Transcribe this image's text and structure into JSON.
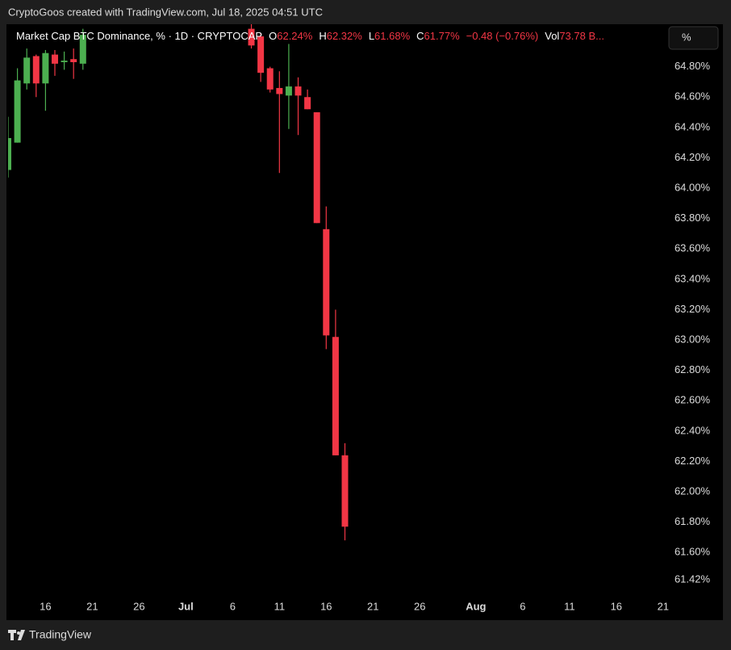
{
  "header": "CryptoGoos created with TradingView.com, Jul 18, 2025 04:51 UTC",
  "footer": "TradingView",
  "chart_data": {
    "type": "candlestick",
    "title": "Market Cap BTC Dominance, % · 1D · CRYPTOCAP",
    "legend": [
      {
        "key": "O",
        "text": "62.24%"
      },
      {
        "key": "H",
        "text": "62.32%"
      },
      {
        "key": "L",
        "text": "61.68%"
      },
      {
        "key": "C",
        "text": "61.77%"
      },
      {
        "text": "−0.48 (−0.76%)"
      },
      {
        "key": "Vol",
        "text": "73.78 B..."
      }
    ],
    "scale_button": "%",
    "up_color": "#4caf50",
    "down_color": "#f23645",
    "x": [
      "2025-06-12",
      "2025-06-13",
      "2025-06-14",
      "2025-06-15",
      "2025-06-16",
      "2025-06-17",
      "2025-06-18",
      "2025-06-19",
      "2025-06-20",
      "2025-07-08",
      "2025-07-09",
      "2025-07-10",
      "2025-07-11",
      "2025-07-12",
      "2025-07-13",
      "2025-07-14",
      "2025-07-15",
      "2025-07-16",
      "2025-07-17",
      "2025-07-18"
    ],
    "open": [
      64.12,
      64.3,
      64.69,
      64.87,
      64.69,
      64.88,
      64.83,
      64.85,
      64.82,
      65.05,
      65.0,
      64.79,
      64.66,
      64.61,
      64.67,
      64.6,
      64.5,
      63.73,
      63.02,
      62.24
    ],
    "high": [
      64.47,
      64.79,
      64.92,
      64.88,
      64.91,
      64.91,
      64.9,
      64.92,
      65.05,
      65.1,
      65.02,
      64.8,
      64.77,
      64.95,
      64.73,
      64.65,
      64.5,
      63.88,
      63.2,
      62.32
    ],
    "low": [
      64.07,
      64.3,
      64.65,
      64.6,
      64.51,
      64.74,
      64.78,
      64.72,
      64.78,
      64.92,
      64.7,
      64.63,
      64.1,
      64.39,
      64.35,
      64.52,
      63.77,
      62.94,
      62.24,
      61.68
    ],
    "close": [
      64.33,
      64.71,
      64.86,
      64.69,
      64.89,
      64.82,
      64.84,
      64.83,
      65.01,
      64.94,
      64.76,
      64.65,
      64.62,
      64.67,
      64.61,
      64.52,
      63.77,
      63.03,
      62.24,
      61.77
    ],
    "xlim": [
      "2025-06-12",
      "2025-08-23"
    ],
    "xticks": [
      {
        "value": "2025-06-16",
        "label": "16"
      },
      {
        "value": "2025-06-21",
        "label": "21"
      },
      {
        "value": "2025-06-26",
        "label": "26"
      },
      {
        "value": "2025-07-01",
        "label": "Jul"
      },
      {
        "value": "2025-07-06",
        "label": "6"
      },
      {
        "value": "2025-07-11",
        "label": "11"
      },
      {
        "value": "2025-07-16",
        "label": "16"
      },
      {
        "value": "2025-07-21",
        "label": "21"
      },
      {
        "value": "2025-07-26",
        "label": "26"
      },
      {
        "value": "2025-08-01",
        "label": "Aug"
      },
      {
        "value": "2025-08-06",
        "label": "6"
      },
      {
        "value": "2025-08-11",
        "label": "11"
      },
      {
        "value": "2025-08-16",
        "label": "16"
      },
      {
        "value": "2025-08-21",
        "label": "21"
      }
    ],
    "ylim": [
      61.33,
      65.08
    ],
    "yticks": [
      {
        "value": 64.8,
        "label": "64.80%"
      },
      {
        "value": 64.6,
        "label": "64.60%"
      },
      {
        "value": 64.4,
        "label": "64.40%"
      },
      {
        "value": 64.2,
        "label": "64.20%"
      },
      {
        "value": 64.0,
        "label": "64.00%"
      },
      {
        "value": 63.8,
        "label": "63.80%"
      },
      {
        "value": 63.6,
        "label": "63.60%"
      },
      {
        "value": 63.4,
        "label": "63.40%"
      },
      {
        "value": 63.2,
        "label": "63.20%"
      },
      {
        "value": 63.0,
        "label": "63.00%"
      },
      {
        "value": 62.8,
        "label": "62.80%"
      },
      {
        "value": 62.6,
        "label": "62.60%"
      },
      {
        "value": 62.4,
        "label": "62.40%"
      },
      {
        "value": 62.2,
        "label": "62.20%"
      },
      {
        "value": 62.0,
        "label": "62.00%"
      },
      {
        "value": 61.8,
        "label": "61.80%"
      },
      {
        "value": 61.6,
        "label": "61.60%"
      },
      {
        "value": 61.42,
        "label": "61.42%"
      }
    ]
  }
}
